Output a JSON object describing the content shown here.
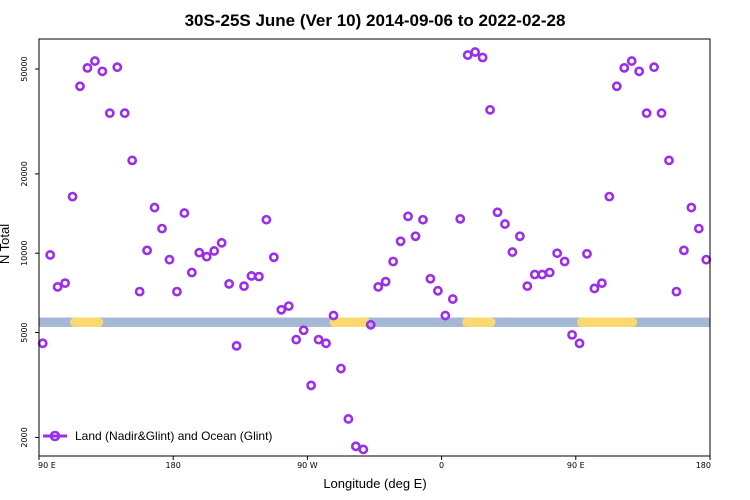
{
  "chart_data": {
    "type": "scatter",
    "title": "30S-25S June (Ver 10)   2014-09-06 to 2022-02-28",
    "xlabel": "Longitude (deg E)",
    "ylabel": "N Total",
    "y_scale": "log",
    "xlim": [
      -90,
      360
    ],
    "ylim": [
      1700,
      65000
    ],
    "x_ticks": [
      {
        "value": -90,
        "label": "90 E"
      },
      {
        "value": 0,
        "label": "180"
      },
      {
        "value": 90,
        "label": "90 W"
      },
      {
        "value": 180,
        "label": "0"
      },
      {
        "value": 270,
        "label": "90 E"
      },
      {
        "value": 360,
        "label": "180"
      }
    ],
    "y_ticks": [
      {
        "value": 2000,
        "label": "2000"
      },
      {
        "value": 5000,
        "label": "5000"
      },
      {
        "value": 10000,
        "label": "10000"
      },
      {
        "value": 20000,
        "label": "20000"
      },
      {
        "value": 50000,
        "label": "50000"
      }
    ],
    "grid": false,
    "legend": {
      "position": "bottom-left",
      "entries": [
        "Land (Nadir&Glint) and Ocean (Glint)"
      ]
    },
    "colors": {
      "marker": "#9b2ded",
      "ocean_band": "#a4b8d6",
      "land_band": "#fbd971"
    },
    "surface_band": {
      "y_range": [
        5250,
        5700
      ],
      "land_segments": [
        [
          -66,
          -50
        ],
        [
          108,
          129
        ],
        [
          197,
          213
        ],
        [
          274,
          308
        ]
      ]
    },
    "series": [
      {
        "name": "Land (Nadir&Glint) and Ocean (Glint)",
        "x": [
          -87.5,
          -82.5,
          -77.5,
          -72.5,
          -67.5,
          -62.5,
          -57.5,
          -52.5,
          -47.5,
          -42.5,
          -37.5,
          -32.5,
          -27.5,
          -22.5,
          -17.5,
          -12.5,
          -7.5,
          -2.5,
          2.5,
          7.5,
          12.5,
          17.5,
          22.5,
          27.5,
          32.5,
          37.5,
          42.5,
          47.5,
          52.5,
          57.5,
          62.5,
          67.5,
          72.5,
          77.5,
          82.5,
          87.5,
          92.5,
          97.5,
          102.5,
          107.5,
          112.5,
          117.5,
          122.5,
          127.5,
          132.5,
          137.5,
          142.5,
          147.5,
          152.5,
          157.5,
          162.5,
          167.5,
          172.5,
          177.5,
          182.5,
          187.5,
          192.5,
          197.5,
          202.5,
          207.5,
          212.5,
          217.5,
          222.5,
          227.5,
          232.5,
          237.5,
          242.5,
          247.5,
          252.5,
          257.5,
          262.5,
          267.5,
          272.5,
          277.5,
          282.5,
          287.5,
          292.5,
          297.5,
          302.5,
          307.5,
          312.5,
          317.5,
          322.5,
          327.5,
          332.5,
          337.5,
          342.5,
          347.5,
          352.5,
          357.5
        ],
        "y": [
          4550,
          9850,
          7450,
          7700,
          16400,
          43000,
          50500,
          53600,
          49000,
          34000,
          50800,
          34000,
          22500,
          7150,
          10250,
          14900,
          12400,
          9450,
          7150,
          14200,
          8450,
          10050,
          9700,
          10200,
          10950,
          7650,
          4450,
          7500,
          8200,
          8150,
          13400,
          9650,
          6100,
          6300,
          4700,
          5100,
          3150,
          4700,
          4550,
          5800,
          3650,
          2350,
          1850,
          1800,
          5350,
          7450,
          7800,
          9300,
          11100,
          13800,
          11600,
          13400,
          8000,
          7200,
          5800,
          6700,
          13500,
          56500,
          58000,
          55300,
          35000,
          14300,
          12900,
          10100,
          11600,
          7500,
          8300,
          8300,
          8450,
          10000,
          9300,
          4900,
          4550,
          9950,
          7350,
          7700,
          16400,
          43000,
          50500,
          53600,
          49000,
          34000,
          50800,
          34000,
          22500,
          7150,
          10250,
          14900,
          12400,
          9450
        ]
      }
    ]
  }
}
